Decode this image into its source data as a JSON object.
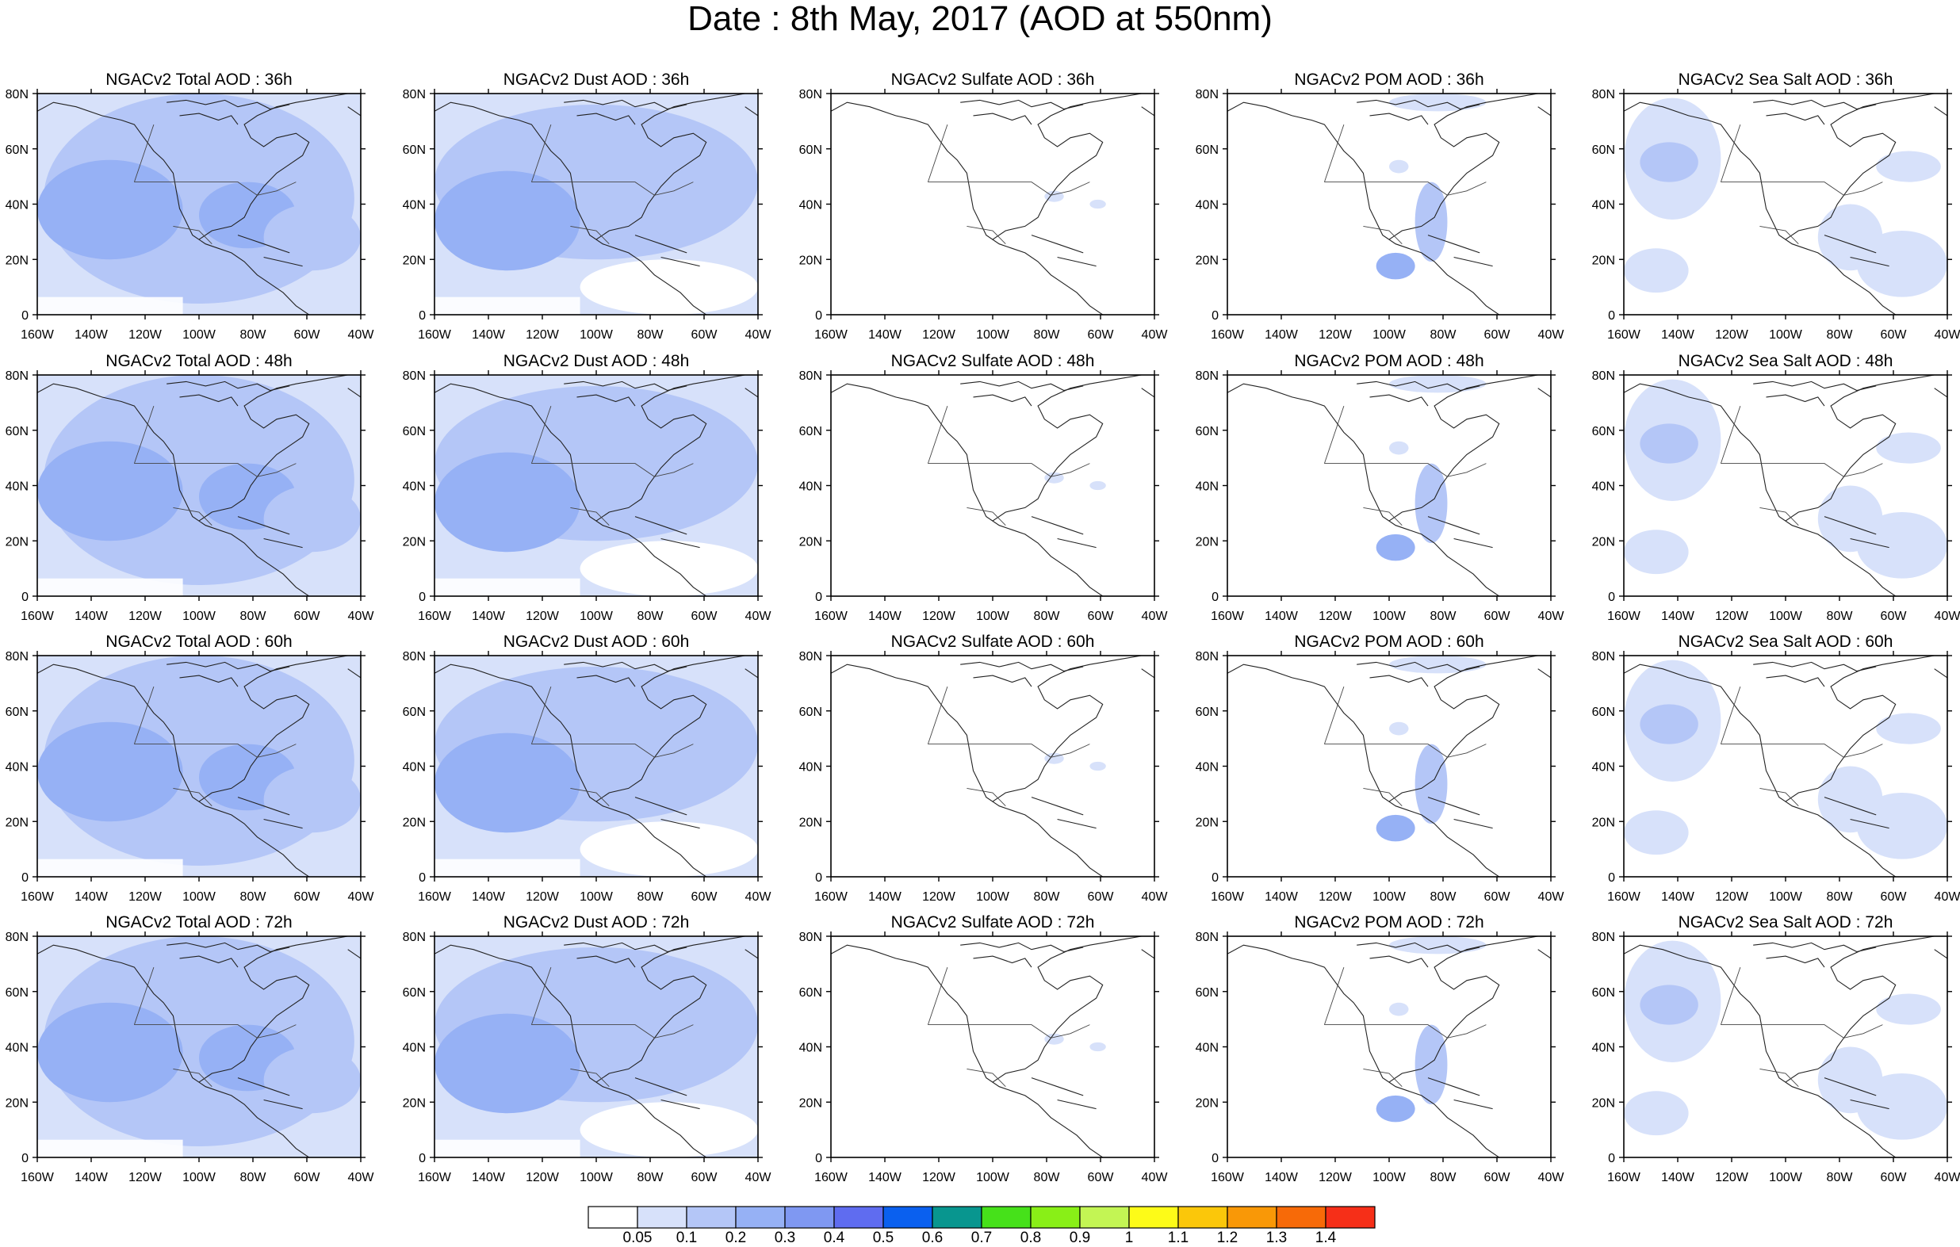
{
  "title": "Date : 8th May, 2017 (AOD at 550nm)",
  "panels": [
    [
      "NGACv2 Total AOD : 36h",
      "NGACv2 Dust AOD : 36h",
      "NGACv2 Sulfate AOD : 36h",
      "NGACv2 POM AOD : 36h",
      "NGACv2 Sea Salt AOD : 36h"
    ],
    [
      "NGACv2 Total AOD : 48h",
      "NGACv2 Dust AOD : 48h",
      "NGACv2 Sulfate AOD : 48h",
      "NGACv2 POM AOD : 48h",
      "NGACv2 Sea Salt AOD : 48h"
    ],
    [
      "NGACv2 Total AOD : 60h",
      "NGACv2 Dust AOD : 60h",
      "NGACv2 Sulfate AOD : 60h",
      "NGACv2 POM AOD : 60h",
      "NGACv2 Sea Salt AOD : 60h"
    ],
    [
      "NGACv2 Total AOD : 72h",
      "NGACv2 Dust AOD : 72h",
      "NGACv2 Sulfate AOD : 72h",
      "NGACv2 POM AOD : 72h",
      "NGACv2 Sea Salt  AOD : 72h"
    ]
  ],
  "lat_ticks": [
    "80N",
    "60N",
    "40N",
    "20N",
    "0"
  ],
  "lon_ticks": [
    "160W",
    "140W",
    "120W",
    "100W",
    "80W",
    "60W",
    "40W"
  ],
  "colorbar": {
    "colors": [
      "#ffffff",
      "#d7e1fa",
      "#b4c6f7",
      "#96b1f5",
      "#7f98f2",
      "#5f6cf0",
      "#0a60ef",
      "#08968f",
      "#46e11a",
      "#89ef17",
      "#c3f554",
      "#fdfb18",
      "#fbc70a",
      "#f99807",
      "#f76a08",
      "#f62f18"
    ],
    "labels": [
      "0.05",
      "0.1",
      "0.2",
      "0.3",
      "0.4",
      "0.5",
      "0.6",
      "0.7",
      "0.8",
      "0.9",
      "1",
      "1.1",
      "1.2",
      "1.3",
      "1.4"
    ]
  }
}
